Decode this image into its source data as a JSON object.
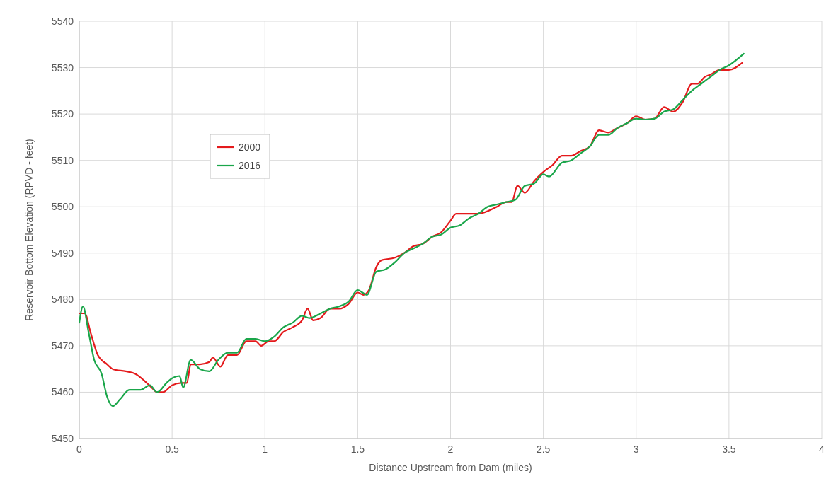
{
  "chart_data": {
    "type": "line",
    "xlabel": "Distance Upstream from Dam (miles)",
    "ylabel": "Reservoir Bottom Elevation (RPVD - feet)",
    "xlim": [
      0,
      4
    ],
    "xticks": [
      0,
      0.5,
      1,
      1.5,
      2,
      2.5,
      3,
      3.5,
      4
    ],
    "ylim": [
      5450,
      5540
    ],
    "yticks": [
      5450,
      5460,
      5470,
      5480,
      5490,
      5500,
      5510,
      5520,
      5530,
      5540
    ],
    "grid": true,
    "legend": "top left",
    "marker": "none",
    "line_style": "solid",
    "series": [
      {
        "name": "2000",
        "color": "#e41a1c",
        "x": [
          0,
          0.03,
          0.06,
          0.1,
          0.15,
          0.18,
          0.25,
          0.3,
          0.35,
          0.39,
          0.42,
          0.45,
          0.5,
          0.55,
          0.58,
          0.6,
          0.65,
          0.7,
          0.72,
          0.76,
          0.8,
          0.85,
          0.9,
          0.95,
          0.98,
          1.02,
          1.05,
          1.1,
          1.15,
          1.2,
          1.23,
          1.26,
          1.3,
          1.35,
          1.4,
          1.45,
          1.5,
          1.53,
          1.56,
          1.6,
          1.63,
          1.7,
          1.75,
          1.8,
          1.85,
          1.9,
          1.95,
          2,
          2.03,
          2.1,
          2.15,
          2.25,
          2.3,
          2.33,
          2.36,
          2.4,
          2.45,
          2.5,
          2.55,
          2.6,
          2.65,
          2.7,
          2.75,
          2.8,
          2.85,
          2.9,
          2.95,
          3,
          3.05,
          3.1,
          3.15,
          3.2,
          3.25,
          3.3,
          3.33,
          3.37,
          3.4,
          3.45,
          3.5,
          3.57
        ],
        "values": [
          5477,
          5477,
          5473,
          5468,
          5466,
          5465,
          5464.5,
          5464,
          5462.5,
          5461,
          5460,
          5460,
          5461.5,
          5462,
          5462,
          5466,
          5466,
          5466.5,
          5467.5,
          5465.5,
          5468,
          5468,
          5471,
          5471,
          5470,
          5471,
          5471,
          5473,
          5474,
          5475.5,
          5478,
          5475.5,
          5476,
          5478,
          5478,
          5479,
          5481.5,
          5481,
          5482,
          5487,
          5488.5,
          5489,
          5490,
          5491.5,
          5492,
          5493.5,
          5494.5,
          5497,
          5498.5,
          5498.5,
          5498.5,
          5500,
          5501,
          5501,
          5504.5,
          5503,
          5505.5,
          5507.5,
          5509,
          5511,
          5511,
          5512,
          5513,
          5516.5,
          5516,
          5517,
          5518,
          5519.5,
          5518.8,
          5519,
          5521.5,
          5520.5,
          5522.5,
          5526.5,
          5526.5,
          5528,
          5528.5,
          5529.5,
          5529.5,
          5531
        ]
      },
      {
        "name": "2016",
        "color": "#1aa64a",
        "x": [
          0,
          0.02,
          0.05,
          0.08,
          0.12,
          0.15,
          0.18,
          0.22,
          0.27,
          0.33,
          0.38,
          0.42,
          0.47,
          0.5,
          0.54,
          0.56,
          0.6,
          0.65,
          0.7,
          0.75,
          0.8,
          0.85,
          0.9,
          0.95,
          1,
          1.05,
          1.1,
          1.15,
          1.2,
          1.24,
          1.3,
          1.35,
          1.4,
          1.45,
          1.5,
          1.55,
          1.6,
          1.65,
          1.7,
          1.75,
          1.8,
          1.85,
          1.9,
          1.95,
          2,
          2.05,
          2.1,
          2.15,
          2.2,
          2.25,
          2.3,
          2.35,
          2.4,
          2.45,
          2.5,
          2.53,
          2.6,
          2.65,
          2.7,
          2.75,
          2.8,
          2.85,
          2.9,
          2.95,
          3,
          3.05,
          3.1,
          3.15,
          3.2,
          3.25,
          3.3,
          3.35,
          3.4,
          3.45,
          3.5,
          3.58
        ],
        "values": [
          5475,
          5478.5,
          5473,
          5467,
          5464,
          5459,
          5457,
          5458.5,
          5460.5,
          5460.5,
          5461.5,
          5460,
          5462,
          5463,
          5463.5,
          5461,
          5467,
          5465,
          5464.5,
          5467,
          5468.5,
          5468.5,
          5471.5,
          5471.5,
          5471,
          5472,
          5474,
          5475,
          5476.5,
          5476,
          5477,
          5478,
          5478.5,
          5479.5,
          5482,
          5481,
          5486,
          5486.5,
          5488,
          5490,
          5491,
          5492,
          5493.5,
          5494,
          5495.5,
          5496,
          5497.5,
          5498.5,
          5500,
          5500.5,
          5501,
          5501.5,
          5504.5,
          5505,
          5507,
          5506.5,
          5509.5,
          5510,
          5511.5,
          5513,
          5515.5,
          5515.5,
          5517,
          5518,
          5519,
          5518.8,
          5519,
          5520.5,
          5521,
          5523,
          5525,
          5526.5,
          5528,
          5529.5,
          5530.5,
          5533
        ]
      }
    ]
  }
}
